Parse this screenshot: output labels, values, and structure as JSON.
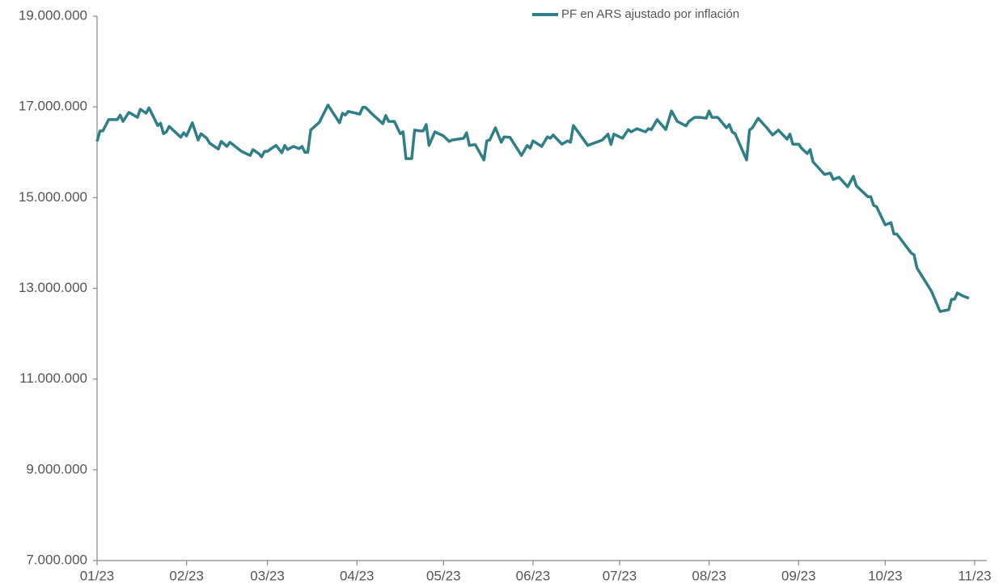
{
  "chart_data": {
    "type": "line",
    "x": [
      0,
      1,
      2,
      4,
      7,
      8,
      9,
      11,
      14,
      15,
      17,
      18,
      21,
      22,
      23,
      24,
      25,
      29,
      30,
      31,
      33,
      35,
      36,
      38,
      39,
      42,
      43,
      45,
      46,
      50,
      53,
      54,
      56,
      57,
      58,
      59,
      61,
      62,
      64,
      65,
      66,
      68,
      70,
      71,
      72,
      73,
      74,
      77,
      80,
      84,
      85,
      86,
      87,
      91,
      92,
      93,
      95,
      99,
      100,
      101,
      103,
      105,
      106,
      107,
      109,
      110,
      112,
      113,
      114,
      115,
      117,
      120,
      122,
      123,
      127,
      128,
      129,
      131,
      134,
      135,
      136,
      138,
      140,
      141,
      143,
      147,
      149,
      150,
      151,
      154,
      156,
      157,
      158,
      161,
      163,
      164,
      165,
      170,
      175,
      177,
      178,
      179,
      182,
      184,
      185,
      187,
      190,
      191,
      192,
      194,
      197,
      199,
      201,
      204,
      205,
      207,
      209,
      211,
      212,
      213,
      215,
      218,
      219,
      220,
      221,
      225,
      226,
      227,
      229,
      232,
      234,
      236,
      239,
      240,
      241,
      243,
      244,
      246,
      247,
      248,
      252,
      254,
      255,
      257,
      260,
      262,
      263,
      266,
      267,
      268,
      269,
      270,
      273,
      275,
      276,
      277,
      282,
      283,
      284,
      289,
      292,
      295,
      296,
      297,
      298,
      300,
      302
    ],
    "series": [
      {
        "name": "PF en ARS ajustado por inflación",
        "color": "#2e7f87",
        "values": [
          16240000,
          16470000,
          16470000,
          16720000,
          16720000,
          16820000,
          16680000,
          16880000,
          16770000,
          16950000,
          16860000,
          16980000,
          16590000,
          16640000,
          16410000,
          16450000,
          16570000,
          16330000,
          16430000,
          16360000,
          16650000,
          16270000,
          16410000,
          16310000,
          16200000,
          16070000,
          16240000,
          16130000,
          16220000,
          16020000,
          15930000,
          16060000,
          15970000,
          15900000,
          16020000,
          16020000,
          16110000,
          16150000,
          15990000,
          16150000,
          16060000,
          16130000,
          16080000,
          16130000,
          16000000,
          16000000,
          16490000,
          16660000,
          17040000,
          16650000,
          16860000,
          16820000,
          16900000,
          16840000,
          16990000,
          16990000,
          16860000,
          16630000,
          16810000,
          16680000,
          16680000,
          16410000,
          16450000,
          15860000,
          15860000,
          16490000,
          16470000,
          16470000,
          16610000,
          16150000,
          16450000,
          16360000,
          16240000,
          16270000,
          16310000,
          16430000,
          16150000,
          16170000,
          15830000,
          16250000,
          16270000,
          16540000,
          16220000,
          16340000,
          16330000,
          15930000,
          16150000,
          16090000,
          16250000,
          16130000,
          16340000,
          16310000,
          16380000,
          16180000,
          16250000,
          16220000,
          16590000,
          16150000,
          16270000,
          16400000,
          16170000,
          16400000,
          16310000,
          16500000,
          16450000,
          16520000,
          16450000,
          16520000,
          16500000,
          16720000,
          16500000,
          16910000,
          16680000,
          16580000,
          16680000,
          16770000,
          16770000,
          16750000,
          16910000,
          16770000,
          16770000,
          16540000,
          16610000,
          16450000,
          16410000,
          15830000,
          16490000,
          16540000,
          16750000,
          16540000,
          16380000,
          16490000,
          16290000,
          16400000,
          16180000,
          16180000,
          16090000,
          15970000,
          16060000,
          15790000,
          15510000,
          15540000,
          15400000,
          15450000,
          15240000,
          15470000,
          15260000,
          15080000,
          15020000,
          15020000,
          14830000,
          14800000,
          14400000,
          14450000,
          14200000,
          14200000,
          13780000,
          13740000,
          13450000,
          12940000,
          12490000,
          12530000,
          12760000,
          12760000,
          12900000,
          12830000,
          12780000
        ]
      }
    ],
    "xlim": [
      0,
      304
    ],
    "xticks": [
      {
        "value": 0,
        "label": "01/23"
      },
      {
        "value": 31,
        "label": "02/23"
      },
      {
        "value": 59,
        "label": "03/23"
      },
      {
        "value": 90,
        "label": "04/23"
      },
      {
        "value": 120,
        "label": "05/23"
      },
      {
        "value": 151,
        "label": "06/23"
      },
      {
        "value": 181,
        "label": "07/23"
      },
      {
        "value": 212,
        "label": "08/23"
      },
      {
        "value": 243,
        "label": "09/23"
      },
      {
        "value": 273,
        "label": "10/23"
      },
      {
        "value": 304,
        "label": "11/23"
      }
    ],
    "ylim": [
      7000000,
      19000000
    ],
    "yticks": [
      {
        "value": 7000000,
        "label": "7.000.000"
      },
      {
        "value": 9000000,
        "label": "9.000.000"
      },
      {
        "value": 11000000,
        "label": "11.000.000"
      },
      {
        "value": 13000000,
        "label": "13.000.000"
      },
      {
        "value": 15000000,
        "label": "15.000.000"
      },
      {
        "value": 17000000,
        "label": "17.000.000"
      },
      {
        "value": 19000000,
        "label": "19.000.000"
      }
    ],
    "legend": "top",
    "grid": false
  }
}
